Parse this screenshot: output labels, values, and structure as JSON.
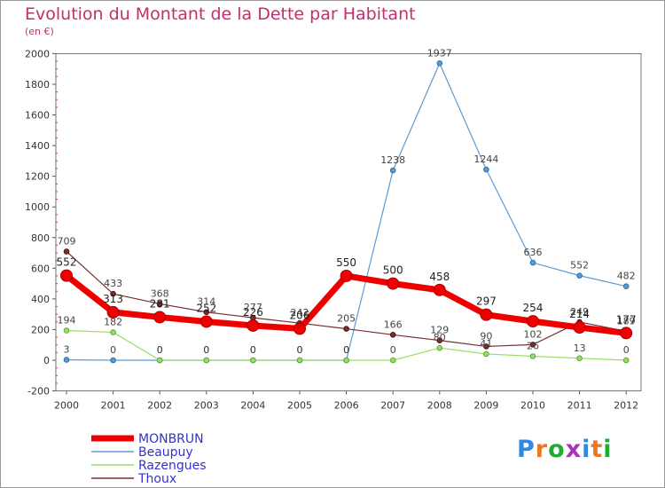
{
  "title": "Evolution du Montant de la Dette par Habitant",
  "subtitle": "(en €)",
  "chart_data": {
    "type": "line",
    "title": "Evolution du Montant de la Dette par Habitant",
    "subtitle": "(en €)",
    "xlabel": "",
    "ylabel": "",
    "x": [
      "2000",
      "2001",
      "2002",
      "2003",
      "2004",
      "2005",
      "2006",
      "2007",
      "2008",
      "2009",
      "2010",
      "2011",
      "2012"
    ],
    "ylim": [
      -200,
      2000
    ],
    "yticks": [
      -200,
      0,
      200,
      400,
      600,
      800,
      1000,
      1200,
      1400,
      1600,
      1800,
      2000
    ],
    "grid": false,
    "legend_position": "bottom-left",
    "series": [
      {
        "name": "MONBRUN",
        "color": "#ee0000",
        "values": [
          552,
          313,
          281,
          252,
          226,
          206,
          550,
          500,
          458,
          297,
          254,
          214,
          177
        ]
      },
      {
        "name": "Beaupuy",
        "color": "#5b9bd5",
        "values": [
          3,
          0,
          0,
          0,
          0,
          0,
          0,
          1238,
          1937,
          1244,
          636,
          552,
          482
        ]
      },
      {
        "name": "Razengues",
        "color": "#99dd66",
        "values": [
          194,
          182,
          0,
          0,
          0,
          0,
          0,
          0,
          80,
          41,
          26,
          13,
          0
        ]
      },
      {
        "name": "Thoux",
        "color": "#7a2f2f",
        "values": [
          709,
          433,
          368,
          314,
          277,
          242,
          205,
          166,
          129,
          90,
          102,
          249,
          189
        ]
      }
    ]
  },
  "logo": {
    "text": "Proxiti",
    "colors": [
      "#3388dd",
      "#ee7722",
      "#22aa33",
      "#aa33bb"
    ]
  }
}
